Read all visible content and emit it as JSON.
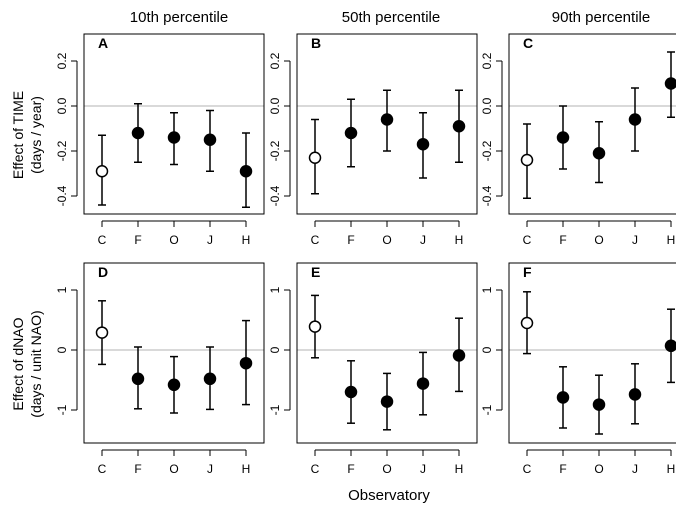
{
  "figure": {
    "column_titles": [
      "10th percentile",
      "50th percentile",
      "90th percentile"
    ],
    "row_ylabels": [
      [
        "Effect of TIME",
        "(days / year)"
      ],
      [
        "Effect of dNAO",
        "(days / unit NAO)"
      ]
    ],
    "xlabel": "Observatory"
  },
  "chart_data": [
    {
      "type": "scatter",
      "panel": "A",
      "title": "10th percentile",
      "categories": [
        "C",
        "F",
        "O",
        "J",
        "H"
      ],
      "ylabel": "Effect of TIME (days / year)",
      "ylim": [
        -0.48,
        0.32
      ],
      "yticks": [
        -0.4,
        -0.2,
        0.0,
        0.2
      ],
      "ytick_labels": [
        "-0.4",
        "-0.2",
        "0.0",
        "0.2"
      ],
      "reference_line": 0,
      "series": [
        {
          "values": [
            -0.29,
            -0.12,
            -0.14,
            -0.15,
            -0.29
          ],
          "lower": [
            -0.44,
            -0.25,
            -0.26,
            -0.29,
            -0.45
          ],
          "upper": [
            -0.13,
            0.01,
            -0.03,
            -0.02,
            -0.12
          ],
          "filled": [
            false,
            true,
            true,
            true,
            true
          ]
        }
      ]
    },
    {
      "type": "scatter",
      "panel": "B",
      "title": "50th percentile",
      "categories": [
        "C",
        "F",
        "O",
        "J",
        "H"
      ],
      "ylabel": "Effect of TIME (days / year)",
      "ylim": [
        -0.48,
        0.32
      ],
      "yticks": [
        -0.4,
        -0.2,
        0.0,
        0.2
      ],
      "ytick_labels": [
        "-0.4",
        "-0.2",
        "0.0",
        "0.2"
      ],
      "reference_line": 0,
      "series": [
        {
          "values": [
            -0.23,
            -0.12,
            -0.06,
            -0.17,
            -0.09
          ],
          "lower": [
            -0.39,
            -0.27,
            -0.2,
            -0.32,
            -0.25
          ],
          "upper": [
            -0.06,
            0.03,
            0.07,
            -0.03,
            0.07
          ],
          "filled": [
            false,
            true,
            true,
            true,
            true
          ]
        }
      ]
    },
    {
      "type": "scatter",
      "panel": "C",
      "title": "90th percentile",
      "categories": [
        "C",
        "F",
        "O",
        "J",
        "H"
      ],
      "ylabel": "Effect of TIME (days / year)",
      "ylim": [
        -0.48,
        0.32
      ],
      "yticks": [
        -0.4,
        -0.2,
        0.0,
        0.2
      ],
      "ytick_labels": [
        "-0.4",
        "-0.2",
        "0.0",
        "0.2"
      ],
      "reference_line": 0,
      "series": [
        {
          "values": [
            -0.24,
            -0.14,
            -0.21,
            -0.06,
            0.1
          ],
          "lower": [
            -0.41,
            -0.28,
            -0.34,
            -0.2,
            -0.05
          ],
          "upper": [
            -0.08,
            0.0,
            -0.07,
            0.08,
            0.24
          ],
          "filled": [
            false,
            true,
            true,
            true,
            true
          ]
        }
      ]
    },
    {
      "type": "scatter",
      "panel": "D",
      "title": "10th percentile",
      "categories": [
        "C",
        "F",
        "O",
        "J",
        "H"
      ],
      "ylabel": "Effect of dNAO (days / unit NAO)",
      "ylim": [
        -1.55,
        1.45
      ],
      "yticks": [
        -1,
        0,
        1
      ],
      "ytick_labels": [
        "-1",
        "0",
        "1"
      ],
      "reference_line": 0,
      "series": [
        {
          "values": [
            0.29,
            -0.48,
            -0.58,
            -0.48,
            -0.22
          ],
          "lower": [
            -0.24,
            -0.98,
            -1.05,
            -0.99,
            -0.91
          ],
          "upper": [
            0.82,
            0.05,
            -0.11,
            0.05,
            0.49
          ],
          "filled": [
            false,
            true,
            true,
            true,
            true
          ]
        }
      ]
    },
    {
      "type": "scatter",
      "panel": "E",
      "title": "50th percentile",
      "categories": [
        "C",
        "F",
        "O",
        "J",
        "H"
      ],
      "ylabel": "Effect of dNAO (days / unit NAO)",
      "ylim": [
        -1.55,
        1.45
      ],
      "yticks": [
        -1,
        0,
        1
      ],
      "ytick_labels": [
        "-1",
        "0",
        "1"
      ],
      "reference_line": 0,
      "series": [
        {
          "values": [
            0.39,
            -0.7,
            -0.86,
            -0.56,
            -0.09
          ],
          "lower": [
            -0.13,
            -1.22,
            -1.33,
            -1.08,
            -0.69
          ],
          "upper": [
            0.91,
            -0.18,
            -0.39,
            -0.04,
            0.53
          ],
          "filled": [
            false,
            true,
            true,
            true,
            true
          ]
        }
      ]
    },
    {
      "type": "scatter",
      "panel": "F",
      "title": "90th percentile",
      "categories": [
        "C",
        "F",
        "O",
        "J",
        "H"
      ],
      "ylabel": "Effect of dNAO (days / unit NAO)",
      "ylim": [
        -1.55,
        1.45
      ],
      "yticks": [
        -1,
        0,
        1
      ],
      "ytick_labels": [
        "-1",
        "0",
        "1"
      ],
      "reference_line": 0,
      "series": [
        {
          "values": [
            0.45,
            -0.79,
            -0.91,
            -0.74,
            0.07
          ],
          "lower": [
            -0.06,
            -1.3,
            -1.4,
            -1.23,
            -0.54
          ],
          "upper": [
            0.97,
            -0.28,
            -0.42,
            -0.23,
            0.68
          ],
          "filled": [
            false,
            true,
            true,
            true,
            true
          ]
        }
      ]
    }
  ]
}
